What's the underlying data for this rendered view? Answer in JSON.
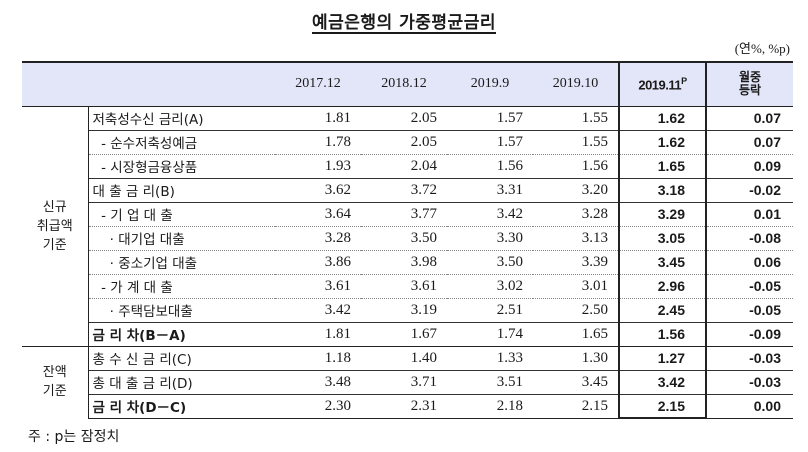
{
  "title": "예금은행의 가중평균금리",
  "unit": "(연%, %p)",
  "table": {
    "headers": [
      "2017.12",
      "2018.12",
      "2019.9",
      "2019.10",
      "2019.11",
      "월중 등락"
    ],
    "header_bold_sup": "P",
    "change_header_line1": "월중",
    "change_header_line2": "등락",
    "groups": {
      "new": [
        "신규",
        "취급액",
        "기준"
      ],
      "balance": [
        "잔액",
        "기준"
      ]
    },
    "rows": [
      {
        "label": "저축성수신 금리(A)",
        "values": [
          "1.81",
          "2.05",
          "1.57",
          "1.55"
        ],
        "current": "1.62",
        "change": "0.07"
      },
      {
        "label": "  - 순수저축성예금",
        "values": [
          "1.78",
          "2.05",
          "1.57",
          "1.55"
        ],
        "current": "1.62",
        "change": "0.07"
      },
      {
        "label": "  - 시장형금융상품",
        "values": [
          "1.93",
          "2.04",
          "1.56",
          "1.56"
        ],
        "current": "1.65",
        "change": "0.09"
      },
      {
        "label": "대 출 금 리(B)",
        "values": [
          "3.62",
          "3.72",
          "3.31",
          "3.20"
        ],
        "current": "3.18",
        "change": "-0.02"
      },
      {
        "label": "  - 기 업 대 출",
        "values": [
          "3.64",
          "3.77",
          "3.42",
          "3.28"
        ],
        "current": "3.29",
        "change": "0.01"
      },
      {
        "label": "    · 대기업 대출",
        "values": [
          "3.28",
          "3.50",
          "3.30",
          "3.13"
        ],
        "current": "3.05",
        "change": "-0.08"
      },
      {
        "label": "    · 중소기업 대출",
        "values": [
          "3.86",
          "3.98",
          "3.50",
          "3.39"
        ],
        "current": "3.45",
        "change": "0.06"
      },
      {
        "label": "  - 가 계 대 출",
        "values": [
          "3.61",
          "3.61",
          "3.02",
          "3.01"
        ],
        "current": "2.96",
        "change": "-0.05"
      },
      {
        "label": "    · 주택담보대출",
        "values": [
          "3.42",
          "3.19",
          "2.51",
          "2.50"
        ],
        "current": "2.45",
        "change": "-0.05"
      },
      {
        "label": "금 리 차(B－A)",
        "values": [
          "1.81",
          "1.67",
          "1.74",
          "1.65"
        ],
        "current": "1.56",
        "change": "-0.09"
      },
      {
        "label": "총 수 신 금 리(C)",
        "values": [
          "1.18",
          "1.40",
          "1.33",
          "1.30"
        ],
        "current": "1.27",
        "change": "-0.03"
      },
      {
        "label": "총 대 출 금 리(D)",
        "values": [
          "3.48",
          "3.71",
          "3.51",
          "3.45"
        ],
        "current": "3.42",
        "change": "-0.03"
      },
      {
        "label": "금 리 차(D－C)",
        "values": [
          "2.30",
          "2.31",
          "2.18",
          "2.15"
        ],
        "current": "2.15",
        "change": "0.00"
      }
    ]
  },
  "note": "주 : p는 잠정치"
}
